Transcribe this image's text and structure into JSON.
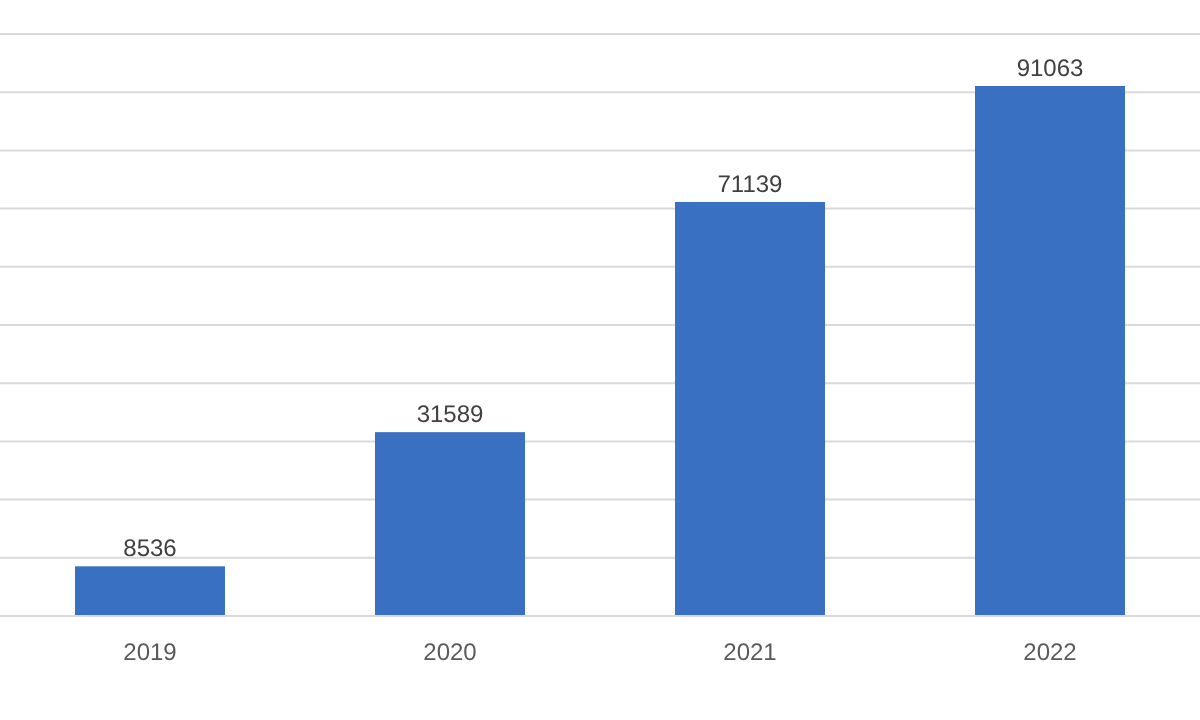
{
  "chart_data": {
    "type": "bar",
    "categories": [
      "2019",
      "2020",
      "2021",
      "2022"
    ],
    "values": [
      8536,
      31589,
      71139,
      91063
    ],
    "color": "#3a70c2",
    "ylim": [
      0,
      100000
    ],
    "yticks": [
      {
        "value": 0,
        "label": null
      },
      {
        "value": 10000,
        "label": null
      },
      {
        "value": 20000,
        "label": null
      },
      {
        "value": 30000,
        "label": null
      },
      {
        "value": 40000,
        "label": null
      },
      {
        "value": 50000,
        "label": null
      },
      {
        "value": 60000,
        "label": null
      },
      {
        "value": 70000,
        "label": null
      },
      {
        "value": 80000,
        "label": null
      },
      {
        "value": 90000,
        "label": null
      },
      {
        "value": 100000,
        "label": null
      }
    ],
    "tick_labels": "x",
    "grid": "y",
    "data_labels": true
  }
}
